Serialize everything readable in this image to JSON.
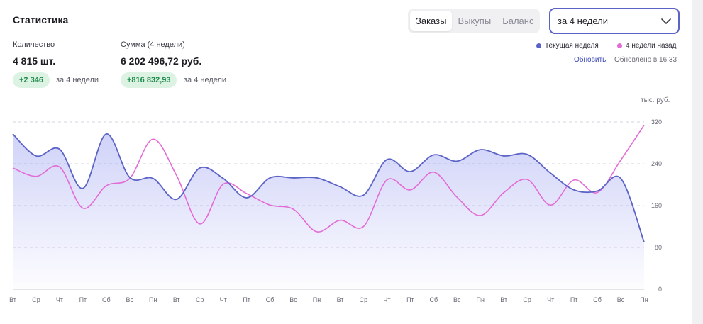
{
  "header": {
    "title": "Статистика"
  },
  "metrics": [
    {
      "label": "Количество",
      "value": "4 815 шт.",
      "delta": "+2 346",
      "period": "за 4 недели"
    },
    {
      "label": "Сумма (4 недели)",
      "value": "6 202 496,72 руб.",
      "delta": "+816 832,93",
      "period": "за 4 недели"
    }
  ],
  "tabs": [
    {
      "label": "Заказы",
      "active": true
    },
    {
      "label": "Выкупы",
      "active": false
    },
    {
      "label": "Баланс",
      "active": false
    }
  ],
  "period_select": {
    "value": "за 4 недели",
    "icon": "chevron-down-icon"
  },
  "legend": [
    {
      "label": "Текущая неделя",
      "color": "#5b63c7"
    },
    {
      "label": "4 недели назад",
      "color": "#e36bd6"
    }
  ],
  "refresh": {
    "link": "Обновить",
    "updated": "Обновлено в 16:33"
  },
  "chart_data": {
    "type": "area",
    "unit_label": "тыс. руб.",
    "ylim": [
      0,
      320
    ],
    "yticks": [
      0,
      80,
      160,
      240,
      320
    ],
    "x": [
      "Вт",
      "Ср",
      "Чт",
      "Пт",
      "Сб",
      "Вс",
      "Пн",
      "Вт",
      "Ср",
      "Чт",
      "Пт",
      "Сб",
      "Вс",
      "Пн",
      "Вт",
      "Ср",
      "Чт",
      "Пт",
      "Сб",
      "Вс",
      "Пн",
      "Вт",
      "Ср",
      "Чт",
      "Пт",
      "Сб",
      "Вс",
      "Пн"
    ],
    "series": [
      {
        "name": "Текущая неделя",
        "color": "#5b63c7",
        "values": [
          297,
          255,
          268,
          193,
          297,
          214,
          212,
          172,
          232,
          212,
          175,
          213,
          213,
          213,
          196,
          180,
          248,
          225,
          257,
          245,
          267,
          255,
          258,
          222,
          190,
          188,
          212,
          90
        ]
      },
      {
        "name": "4 недели назад",
        "color": "#e36bd6",
        "values": [
          232,
          216,
          234,
          155,
          198,
          212,
          287,
          218,
          125,
          201,
          183,
          161,
          153,
          110,
          132,
          120,
          209,
          190,
          224,
          176,
          141,
          185,
          210,
          161,
          209,
          185,
          247,
          314
        ]
      }
    ]
  }
}
